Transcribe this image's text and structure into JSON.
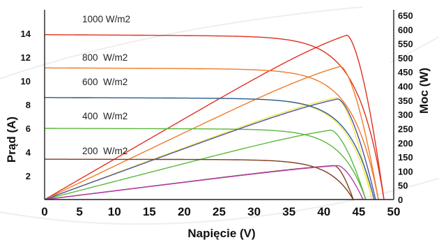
{
  "chart_data": {
    "type": "line",
    "xlabel": "Napięcie (V)",
    "ylabel_left": "Prąd  (A)",
    "ylabel_right": "Moc (W)",
    "xlim": [
      0,
      50
    ],
    "ylim_left": [
      0,
      16
    ],
    "ylim_right": [
      0,
      650
    ],
    "x_ticks": [
      "0",
      "5",
      "10",
      "15",
      "20",
      "25",
      "30",
      "35",
      "40",
      "45",
      "50"
    ],
    "y_left_ticks": [
      "2",
      "4",
      "6",
      "8",
      "10",
      "12",
      "14"
    ],
    "y_right_ticks": [
      "0",
      "50",
      "100",
      "150",
      "200",
      "250",
      "300",
      "350",
      "400",
      "450",
      "500",
      "550",
      "600",
      "650"
    ],
    "series": [
      {
        "name": "1000 W/m2",
        "color": "#e0301e",
        "isc": 13.9,
        "voc": 48.6,
        "vmp": 43.3,
        "pmax": 580
      },
      {
        "name": "800  W/m2",
        "color": "#f07a28",
        "isc": 11.1,
        "voc": 47.8,
        "vmp": 42.4,
        "pmax": 470
      },
      {
        "name": "600  W/m2",
        "color": "#f4e94a",
        "isc": 8.6,
        "voc": 46.9,
        "vmp": 41.8,
        "pmax": 360
      },
      {
        "name": "400  W/m2",
        "color": "#58b83c",
        "isc": 6.0,
        "voc": 46.0,
        "vmp": 41.0,
        "pmax": 245
      },
      {
        "name": "200  W/m2",
        "color": "#7d3a1c",
        "isc": 3.4,
        "voc": 44.2,
        "vmp": 41.5,
        "pmax": 120
      }
    ],
    "extra_power_curves": [
      {
        "color": "#4a52a8",
        "vmp": 42.0,
        "pmax": 355,
        "voc": 47.4
      },
      {
        "color": "#b63cae",
        "vmp": 42.0,
        "pmax": 120,
        "voc": 45.6
      }
    ],
    "blue_iv_curve": {
      "color": "#2a5d9c",
      "isc": 8.6,
      "voc": 47.2
    }
  }
}
